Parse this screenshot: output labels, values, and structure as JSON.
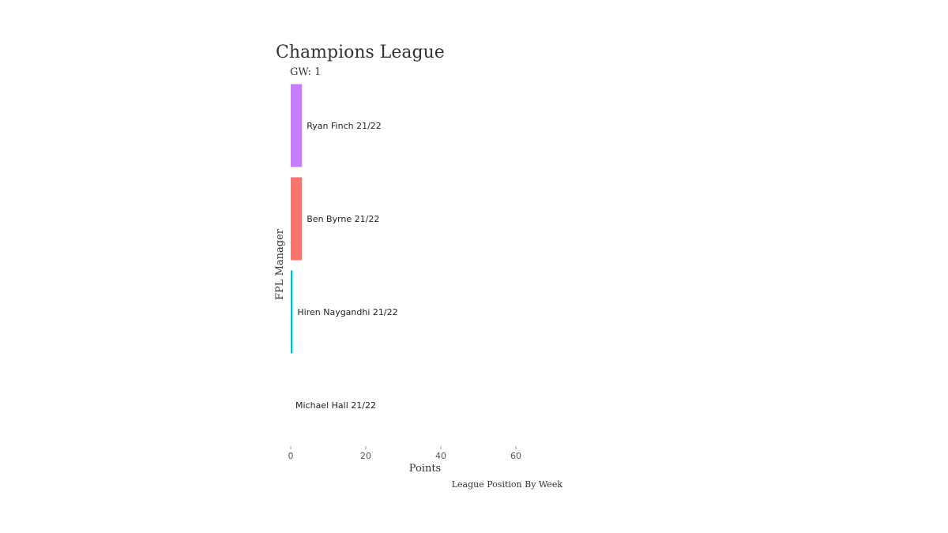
{
  "chart_data": {
    "type": "bar",
    "orientation": "horizontal",
    "title": "Champions League",
    "subtitle": "GW: 1",
    "xlabel": "Points",
    "ylabel": "FPL Manager",
    "caption": "League Position By Week",
    "xlim": [
      0,
      75
    ],
    "xticks": [
      0,
      20,
      40,
      60
    ],
    "grid": false,
    "legend": "none",
    "categories": [
      "Ryan Finch 21/22",
      "Ben Byrne 21/22",
      "Hiren Naygandhi 21/22",
      "Michael Hall 21/22"
    ],
    "values": [
      3,
      3,
      0.5,
      0
    ],
    "colors": [
      "#C77CFF",
      "#F8766D",
      "#00BFC4",
      "#7CAE00"
    ]
  }
}
